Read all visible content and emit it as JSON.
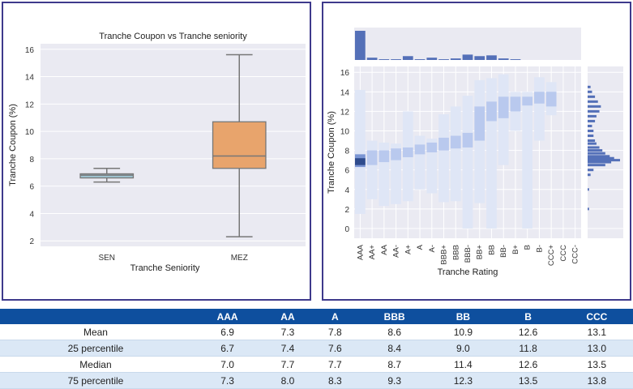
{
  "chart_data": [
    {
      "type": "box",
      "title": "Tranche Coupon vs Tranche seniority",
      "xlabel": "Tranche Seniority",
      "ylabel": "Tranche Coupon (%)",
      "ylim": [
        1.6,
        16.4
      ],
      "yticks": [
        "2",
        "4",
        "6",
        "8",
        "10",
        "12",
        "14",
        "16"
      ],
      "grid": true,
      "series": [
        {
          "category": "SEN",
          "whisker_low": 6.3,
          "q1": 6.6,
          "median": 6.8,
          "q3": 6.9,
          "whisker_high": 7.3,
          "color": "#9ec4d2"
        },
        {
          "category": "MEZ",
          "whisker_low": 2.3,
          "q1": 7.3,
          "median": 8.2,
          "q3": 10.7,
          "whisker_high": 15.6,
          "color": "#e8a46c"
        }
      ]
    },
    {
      "type": "heatmap",
      "xlabel": "Tranche Rating",
      "ylabel": "Tranche Coupon (%)",
      "ylim": [
        -1,
        16.6
      ],
      "yticks": [
        "0",
        "2",
        "4",
        "6",
        "8",
        "10",
        "12",
        "14",
        "16"
      ],
      "categories": [
        "AAA",
        "AA+",
        "AA",
        "AA-",
        "A+",
        "A",
        "A-",
        "BBB+",
        "BBB",
        "BBB-",
        "BB+",
        "BB",
        "BB-",
        "B+",
        "B",
        "B-",
        "CCC+",
        "CCC",
        "CCC-"
      ],
      "rating_counts": [
        38,
        3,
        1,
        1,
        5,
        1,
        3,
        1,
        2,
        7,
        5,
        6,
        2,
        1,
        0,
        0,
        0,
        0,
        0
      ],
      "coupon_ranges": [
        {
          "rating": "AAA",
          "low": 1.5,
          "high": 14.2,
          "dense_low": 6.3,
          "dense_high": 7.6
        },
        {
          "rating": "AA+",
          "low": 3.0,
          "high": 9.0,
          "dense_low": 6.5,
          "dense_high": 8.0
        },
        {
          "rating": "AA",
          "low": 2.3,
          "high": 8.8,
          "dense_low": 6.8,
          "dense_high": 8.0
        },
        {
          "rating": "AA-",
          "low": 2.5,
          "high": 8.7,
          "dense_low": 7.0,
          "dense_high": 8.2
        },
        {
          "rating": "A+",
          "low": 2.8,
          "high": 12.0,
          "dense_low": 7.3,
          "dense_high": 8.3
        },
        {
          "rating": "A",
          "low": 4.0,
          "high": 9.5,
          "dense_low": 7.6,
          "dense_high": 8.6
        },
        {
          "rating": "A-",
          "low": 3.6,
          "high": 9.2,
          "dense_low": 7.8,
          "dense_high": 8.8
        },
        {
          "rating": "BBB+",
          "low": 2.7,
          "high": 11.7,
          "dense_low": 8.0,
          "dense_high": 9.3
        },
        {
          "rating": "BBB",
          "low": 2.8,
          "high": 12.5,
          "dense_low": 8.2,
          "dense_high": 9.5
        },
        {
          "rating": "BBB-",
          "low": 0.0,
          "high": 13.6,
          "dense_low": 8.3,
          "dense_high": 9.8
        },
        {
          "rating": "BB+",
          "low": 2.6,
          "high": 15.2,
          "dense_low": 9.0,
          "dense_high": 12.5
        },
        {
          "rating": "BB",
          "low": 0.0,
          "high": 15.4,
          "dense_low": 11.0,
          "dense_high": 13.0
        },
        {
          "rating": "BB-",
          "low": 6.5,
          "high": 15.8,
          "dense_low": 11.3,
          "dense_high": 13.5
        },
        {
          "rating": "B+",
          "low": 10.0,
          "high": 14.0,
          "dense_low": 12.0,
          "dense_high": 13.5
        },
        {
          "rating": "B",
          "low": 0.0,
          "high": 14.0,
          "dense_low": 12.6,
          "dense_high": 13.5
        },
        {
          "rating": "B-",
          "low": 9.0,
          "high": 15.5,
          "dense_low": 12.8,
          "dense_high": 14.0
        },
        {
          "rating": "CCC+",
          "low": 11.6,
          "high": 15.0,
          "dense_low": 12.5,
          "dense_high": 14.0
        },
        {
          "rating": "CCC",
          "low": 0,
          "high": 0,
          "dense_low": 0,
          "dense_high": 0
        },
        {
          "rating": "CCC-",
          "low": 0,
          "high": 0,
          "dense_low": 0,
          "dense_high": 0
        }
      ],
      "coupon_histogram": {
        "y": [
          2.0,
          4.0,
          5.5,
          6.0,
          6.5,
          6.8,
          7.0,
          7.2,
          7.4,
          7.7,
          8.0,
          8.3,
          8.7,
          9.0,
          9.5,
          10.0,
          10.5,
          11.0,
          11.5,
          12.0,
          12.5,
          13.0,
          13.5,
          14.0,
          14.5
        ],
        "counts": [
          1,
          1,
          2,
          4,
          12,
          16,
          22,
          18,
          15,
          12,
          10,
          8,
          6,
          5,
          4,
          4,
          3,
          5,
          6,
          8,
          9,
          7,
          5,
          3,
          2
        ]
      },
      "colors": {
        "low": "#dfe6f6",
        "mid": "#b9c9ee",
        "high": "#7a95d3",
        "peak": "#2e4b8c"
      }
    },
    {
      "type": "table",
      "columns": [
        "",
        "AAA",
        "AA",
        "A",
        "BBB",
        "BB",
        "B",
        "CCC"
      ],
      "rows": [
        [
          "Mean",
          "6.9",
          "7.3",
          "7.8",
          "8.6",
          "10.9",
          "12.6",
          "13.1"
        ],
        [
          "25 percentile",
          "6.7",
          "7.4",
          "7.6",
          "8.4",
          "9.0",
          "11.8",
          "13.0"
        ],
        [
          "Median",
          "7.0",
          "7.7",
          "7.7",
          "8.7",
          "11.4",
          "12.6",
          "13.5"
        ],
        [
          "75 percentile",
          "7.3",
          "8.0",
          "8.3",
          "9.3",
          "12.3",
          "13.5",
          "13.8"
        ]
      ]
    }
  ]
}
